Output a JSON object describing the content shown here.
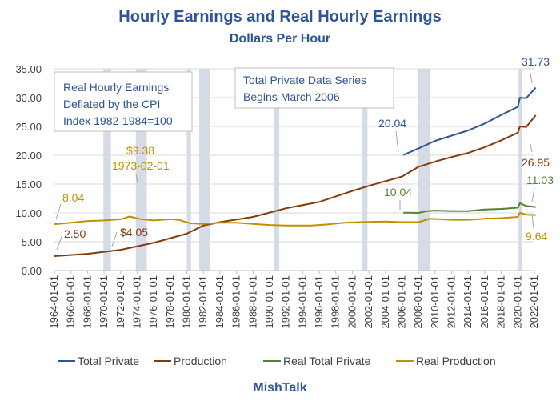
{
  "chart_data": {
    "type": "line",
    "title": "Hourly Earnings and Real Hourly Earnings",
    "subtitle": "Dollars Per Hour",
    "footer": "MishTalk",
    "y_ticks": [
      "0.00",
      "5.00",
      "10.00",
      "15.00",
      "20.00",
      "25.00",
      "30.00",
      "35.00"
    ],
    "ylim": [
      0,
      35
    ],
    "x_range": [
      "1964-01-01",
      "2022-01-01"
    ],
    "x_ticks": [
      "1964-01-01",
      "1966-01-01",
      "1968-01-01",
      "1970-01-01",
      "1972-01-01",
      "1974-01-01",
      "1976-01-01",
      "1978-01-01",
      "1980-01-01",
      "1982-01-01",
      "1984-01-01",
      "1986-01-01",
      "1988-01-01",
      "1990-01-01",
      "1992-01-01",
      "1994-01-01",
      "1996-01-01",
      "1998-01-01",
      "2000-01-01",
      "2002-01-01",
      "2004-01-01",
      "2006-01-01",
      "2008-01-01",
      "2010-01-01",
      "2012-01-01",
      "2014-01-01",
      "2016-01-01",
      "2018-01-01",
      "2020-01-01",
      "2022-01-01"
    ],
    "recessions": [
      [
        "1969-12-01",
        "1970-11-01"
      ],
      [
        "1973-11-01",
        "1975-03-01"
      ],
      [
        "1980-01-01",
        "1980-07-01"
      ],
      [
        "1981-07-01",
        "1982-11-01"
      ],
      [
        "1990-07-01",
        "1991-03-01"
      ],
      [
        "2001-03-01",
        "2001-11-01"
      ],
      [
        "2007-12-01",
        "2009-06-01"
      ],
      [
        "2020-02-01",
        "2020-04-01"
      ]
    ],
    "series": [
      {
        "name": "Total Private",
        "color": "#2e5597",
        "x": [
          "2006-03-01",
          "2008-01-01",
          "2010-01-01",
          "2012-01-01",
          "2014-01-01",
          "2016-01-01",
          "2018-01-01",
          "2020-01-01",
          "2020-04-01",
          "2021-01-01",
          "2022-03-01"
        ],
        "y": [
          20.04,
          21.2,
          22.5,
          23.4,
          24.3,
          25.5,
          27.0,
          28.4,
          30.0,
          29.9,
          31.73
        ]
      },
      {
        "name": "Production",
        "color": "#843c0c",
        "x": [
          "1964-01-01",
          "1968-01-01",
          "1972-01-01",
          "1976-01-01",
          "1980-01-01",
          "1982-01-01",
          "1984-01-01",
          "1988-01-01",
          "1992-01-01",
          "1996-01-01",
          "2000-01-01",
          "2002-01-01",
          "2006-01-01",
          "2008-01-01",
          "2010-01-01",
          "2012-01-01",
          "2014-01-01",
          "2016-01-01",
          "2018-01-01",
          "2020-01-01",
          "2020-04-01",
          "2021-01-01",
          "2022-03-01"
        ],
        "y": [
          2.5,
          2.9,
          3.6,
          4.8,
          6.4,
          7.8,
          8.4,
          9.3,
          10.8,
          11.9,
          13.8,
          14.7,
          16.3,
          18.0,
          18.9,
          19.7,
          20.4,
          21.4,
          22.6,
          23.9,
          25.0,
          24.9,
          26.95
        ]
      },
      {
        "name": "Real Total Private",
        "color": "#548235",
        "x": [
          "2006-03-01",
          "2008-01-01",
          "2009-01-01",
          "2010-01-01",
          "2012-01-01",
          "2014-01-01",
          "2016-01-01",
          "2018-01-01",
          "2020-01-01",
          "2020-04-01",
          "2021-01-01",
          "2022-03-01"
        ],
        "y": [
          10.04,
          10.0,
          10.3,
          10.4,
          10.3,
          10.3,
          10.6,
          10.7,
          10.9,
          11.7,
          11.2,
          11.03
        ]
      },
      {
        "name": "Real Production",
        "color": "#bf9000",
        "x": [
          "1964-01-01",
          "1966-01-01",
          "1968-01-01",
          "1970-01-01",
          "1972-01-01",
          "1973-02-01",
          "1974-06-01",
          "1976-01-01",
          "1978-01-01",
          "1979-01-01",
          "1980-06-01",
          "1982-01-01",
          "1984-01-01",
          "1986-01-01",
          "1988-01-01",
          "1990-01-01",
          "1992-01-01",
          "1995-01-01",
          "1997-01-01",
          "1999-01-01",
          "2001-01-01",
          "2004-01-01",
          "2006-01-01",
          "2008-01-01",
          "2009-06-01",
          "2012-01-01",
          "2014-01-01",
          "2016-01-01",
          "2018-01-01",
          "2020-01-01",
          "2020-04-01",
          "2021-01-01",
          "2022-03-01"
        ],
        "y": [
          8.04,
          8.3,
          8.6,
          8.7,
          8.9,
          9.38,
          8.9,
          8.7,
          8.9,
          8.8,
          8.2,
          8.1,
          8.3,
          8.3,
          8.1,
          7.9,
          7.8,
          7.8,
          8.0,
          8.3,
          8.4,
          8.5,
          8.4,
          8.4,
          9.0,
          8.8,
          8.8,
          9.0,
          9.1,
          9.3,
          10.0,
          9.7,
          9.64
        ]
      }
    ],
    "annotations": [
      {
        "text": "8.04",
        "color": "#bf9000"
      },
      {
        "text": "2.50",
        "color": "#843c0c"
      },
      {
        "text": "$9.38",
        "color": "#bf9000"
      },
      {
        "text": "1973-02-01",
        "color": "#bf9000"
      },
      {
        "text": "$4.05",
        "color": "#843c0c"
      },
      {
        "text": "20.04",
        "color": "#2e5597"
      },
      {
        "text": "10.04",
        "color": "#548235"
      },
      {
        "text": "31.73",
        "color": "#2e5597"
      },
      {
        "text": "26.95",
        "color": "#843c0c"
      },
      {
        "text": "11.03",
        "color": "#548235"
      },
      {
        "text": "9.64",
        "color": "#bf9000"
      }
    ],
    "notes": [
      [
        "Real Hourly Earnings",
        "Deflated by the CPI",
        "Index 1982-1984=100"
      ],
      [
        "Total Private Data Series",
        "Begins March 2006"
      ]
    ],
    "legend_position": "bottom",
    "grid": true
  }
}
